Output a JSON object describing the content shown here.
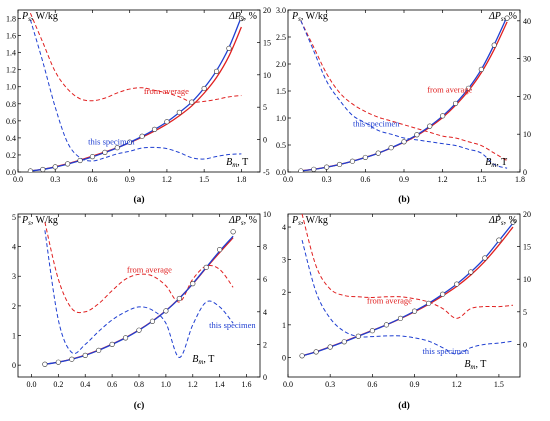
{
  "chart_data": [
    {
      "panel_label": "(a)",
      "type": "line",
      "y_left_label": "P",
      "y_left_sub": "s",
      "y_left_unit": ", W/kg",
      "y_right_label": "ΔP",
      "y_right_sub": "s",
      "y_right_unit": ", %",
      "x_label_main": "B",
      "x_label_sub": "m",
      "x_label_unit": ", T",
      "xlim": [
        0,
        1.95
      ],
      "ylim_left": [
        0,
        1.9
      ],
      "ylim_right": [
        -5,
        20
      ],
      "x_ticks": [
        "0.0",
        "0.3",
        "0.6",
        "0.9",
        "1.2",
        "1.5",
        "1.8"
      ],
      "y_left_ticks": [
        "0.0",
        "0.2",
        "0.4",
        "0.6",
        "0.8",
        "1.0",
        "1.2",
        "1.4",
        "1.6",
        "1.8"
      ],
      "y_right_ticks": [
        "-5",
        "0",
        "5",
        "10",
        "15",
        "20"
      ],
      "annotation_red": "from average",
      "annotation_blue": "this specimen",
      "series": [
        {
          "role": "measured",
          "axis": "left",
          "style": "circles",
          "color": "#000000",
          "x": [
            0.1,
            0.2,
            0.3,
            0.4,
            0.5,
            0.6,
            0.7,
            0.8,
            0.9,
            1.0,
            1.1,
            1.2,
            1.3,
            1.4,
            1.5,
            1.6,
            1.7,
            1.8
          ],
          "y": [
            0.012,
            0.03,
            0.06,
            0.095,
            0.135,
            0.18,
            0.23,
            0.285,
            0.35,
            0.42,
            0.5,
            0.59,
            0.7,
            0.82,
            0.98,
            1.18,
            1.45,
            1.8
          ]
        },
        {
          "role": "model-specimen",
          "axis": "left",
          "style": "solid",
          "color": "#1f3fd1",
          "x": [
            0.1,
            0.2,
            0.3,
            0.4,
            0.5,
            0.6,
            0.7,
            0.8,
            0.9,
            1.0,
            1.1,
            1.2,
            1.3,
            1.4,
            1.5,
            1.6,
            1.7,
            1.8
          ],
          "y": [
            0.012,
            0.03,
            0.058,
            0.093,
            0.133,
            0.178,
            0.228,
            0.283,
            0.348,
            0.418,
            0.498,
            0.588,
            0.698,
            0.82,
            0.985,
            1.19,
            1.46,
            1.82
          ]
        },
        {
          "role": "model-average",
          "axis": "left",
          "style": "solid",
          "color": "#e02020",
          "x": [
            0.1,
            0.2,
            0.3,
            0.4,
            0.5,
            0.6,
            0.7,
            0.8,
            0.9,
            1.0,
            1.1,
            1.2,
            1.3,
            1.4,
            1.5,
            1.6,
            1.7,
            1.8
          ],
          "y": [
            0.013,
            0.032,
            0.062,
            0.098,
            0.14,
            0.186,
            0.234,
            0.286,
            0.344,
            0.408,
            0.48,
            0.562,
            0.66,
            0.775,
            0.925,
            1.11,
            1.36,
            1.7
          ]
        },
        {
          "role": "error-average",
          "axis": "right",
          "style": "dashed",
          "color": "#e02020",
          "x": [
            0.1,
            0.2,
            0.3,
            0.4,
            0.5,
            0.6,
            0.7,
            0.8,
            0.9,
            1.0,
            1.1,
            1.2,
            1.3,
            1.4,
            1.5,
            1.6,
            1.7,
            1.8
          ],
          "y": [
            19.5,
            15,
            10.5,
            7.8,
            6.3,
            6.0,
            6.4,
            7.2,
            7.8,
            8.0,
            7.6,
            7.2,
            6.6,
            5.8,
            5.9,
            6.2,
            6.6,
            6.8
          ]
        },
        {
          "role": "error-specimen",
          "axis": "right",
          "style": "dashed",
          "color": "#1f3fd1",
          "x": [
            0.1,
            0.2,
            0.3,
            0.4,
            0.5,
            0.6,
            0.7,
            0.8,
            0.9,
            1.0,
            1.1,
            1.2,
            1.3,
            1.4,
            1.5,
            1.6,
            1.7,
            1.8
          ],
          "y": [
            18.5,
            12,
            5,
            -0.5,
            -2.8,
            -3.3,
            -2.8,
            -2.2,
            -1.8,
            -1.3,
            -1.2,
            -1.4,
            -2.0,
            -2.8,
            -3.0,
            -2.6,
            -2.3,
            -2.2
          ]
        }
      ]
    },
    {
      "panel_label": "(b)",
      "type": "line",
      "y_left_label": "P",
      "y_left_sub": "s",
      "y_left_unit": ", W/kg",
      "y_right_label": "ΔP",
      "y_right_sub": "s",
      "y_right_unit": ", %",
      "x_label_main": "B",
      "x_label_sub": "m",
      "x_label_unit": ", T",
      "xlim": [
        0,
        1.8
      ],
      "ylim_left": [
        0,
        3.0
      ],
      "ylim_right": [
        0,
        42.86
      ],
      "x_ticks": [
        "0.0",
        "0.3",
        "0.6",
        "0.9",
        "1.2",
        "1.5",
        "1.8"
      ],
      "y_left_ticks": [
        "0.0",
        "0.5",
        "1.0",
        "1.5",
        "2.0",
        "2.5",
        "3.0"
      ],
      "y_right_ticks": [
        "0",
        "10",
        "20",
        "30",
        "40"
      ],
      "annotation_red": "from average",
      "annotation_blue": "this specimen",
      "series": [
        {
          "role": "measured",
          "axis": "left",
          "style": "circles",
          "color": "#000000",
          "x": [
            0.1,
            0.2,
            0.3,
            0.4,
            0.5,
            0.6,
            0.7,
            0.8,
            0.9,
            1.0,
            1.1,
            1.2,
            1.3,
            1.4,
            1.5,
            1.6,
            1.7
          ],
          "y": [
            0.02,
            0.05,
            0.09,
            0.14,
            0.2,
            0.27,
            0.35,
            0.45,
            0.56,
            0.69,
            0.85,
            1.04,
            1.27,
            1.55,
            1.9,
            2.35,
            2.85
          ]
        },
        {
          "role": "model-specimen",
          "axis": "left",
          "style": "solid",
          "color": "#1f3fd1",
          "x": [
            0.1,
            0.2,
            0.3,
            0.4,
            0.5,
            0.6,
            0.7,
            0.8,
            0.9,
            1.0,
            1.1,
            1.2,
            1.3,
            1.4,
            1.5,
            1.6,
            1.7
          ],
          "y": [
            0.02,
            0.048,
            0.088,
            0.138,
            0.198,
            0.268,
            0.348,
            0.448,
            0.558,
            0.688,
            0.848,
            1.038,
            1.268,
            1.548,
            1.9,
            2.36,
            2.88
          ]
        },
        {
          "role": "model-average",
          "axis": "left",
          "style": "solid",
          "color": "#e02020",
          "x": [
            0.1,
            0.2,
            0.3,
            0.4,
            0.5,
            0.6,
            0.7,
            0.8,
            0.9,
            1.0,
            1.1,
            1.2,
            1.3,
            1.4,
            1.5,
            1.6,
            1.7
          ],
          "y": [
            0.021,
            0.05,
            0.09,
            0.14,
            0.2,
            0.27,
            0.35,
            0.445,
            0.55,
            0.675,
            0.83,
            1.01,
            1.235,
            1.505,
            1.84,
            2.27,
            2.78
          ]
        },
        {
          "role": "error-average",
          "axis": "right",
          "style": "dashed",
          "color": "#e02020",
          "x": [
            0.1,
            0.2,
            0.3,
            0.4,
            0.5,
            0.6,
            0.7,
            0.8,
            0.9,
            1.0,
            1.1,
            1.2,
            1.3,
            1.4,
            1.5,
            1.6,
            1.7
          ],
          "y": [
            40,
            33,
            26,
            21,
            18,
            16,
            14.5,
            13.5,
            12.5,
            11.5,
            10.5,
            9.5,
            9,
            8,
            7,
            5,
            3
          ]
        },
        {
          "role": "error-specimen",
          "axis": "right",
          "style": "dashed",
          "color": "#1f3fd1",
          "x": [
            0.1,
            0.2,
            0.3,
            0.4,
            0.5,
            0.6,
            0.7,
            0.8,
            0.9,
            1.0,
            1.1,
            1.2,
            1.3,
            1.4,
            1.5,
            1.6,
            1.7
          ],
          "y": [
            40,
            32,
            24,
            19,
            15,
            13,
            11,
            10,
            9,
            8.5,
            8,
            7.5,
            7,
            6,
            5,
            2,
            1
          ]
        }
      ]
    },
    {
      "panel_label": "(c)",
      "type": "line",
      "y_left_label": "P",
      "y_left_sub": "s",
      "y_left_unit": ", W/kg",
      "y_right_label": "ΔP",
      "y_right_sub": "s",
      "y_right_unit": ", %",
      "x_label_main": "B",
      "x_label_sub": "m",
      "x_label_unit": ", T",
      "xlim": [
        -0.1,
        1.7
      ],
      "ylim_left": [
        -0.4,
        5.1
      ],
      "ylim_right": [
        0,
        10
      ],
      "x_ticks": [
        "0.0",
        "0.2",
        "0.4",
        "0.6",
        "0.8",
        "1.0",
        "1.2",
        "1.4",
        "1.6"
      ],
      "y_left_ticks": [
        "0",
        "1",
        "2",
        "3",
        "4",
        "5"
      ],
      "y_right_ticks": [
        "0",
        "2",
        "4",
        "6",
        "8",
        "10"
      ],
      "annotation_red": "from average",
      "annotation_blue": "this specimen",
      "series": [
        {
          "role": "measured",
          "axis": "left",
          "style": "circles",
          "color": "#000000",
          "x": [
            0.1,
            0.2,
            0.3,
            0.4,
            0.5,
            0.6,
            0.7,
            0.8,
            0.9,
            1.0,
            1.1,
            1.2,
            1.3,
            1.4,
            1.5
          ],
          "y": [
            0.03,
            0.1,
            0.2,
            0.33,
            0.5,
            0.7,
            0.92,
            1.18,
            1.48,
            1.83,
            2.25,
            2.75,
            3.3,
            3.9,
            4.5
          ]
        },
        {
          "role": "model-specimen",
          "axis": "left",
          "style": "solid",
          "color": "#1f3fd1",
          "x": [
            0.1,
            0.2,
            0.3,
            0.4,
            0.5,
            0.6,
            0.7,
            0.8,
            0.9,
            1.0,
            1.1,
            1.2,
            1.3,
            1.4,
            1.5
          ],
          "y": [
            0.03,
            0.1,
            0.2,
            0.33,
            0.5,
            0.7,
            0.92,
            1.18,
            1.48,
            1.83,
            2.25,
            2.75,
            3.3,
            3.85,
            4.35
          ]
        },
        {
          "role": "model-average",
          "axis": "left",
          "style": "solid",
          "color": "#e02020",
          "x": [
            0.1,
            0.2,
            0.3,
            0.4,
            0.5,
            0.6,
            0.7,
            0.8,
            0.9,
            1.0,
            1.1,
            1.2,
            1.3,
            1.4,
            1.5
          ],
          "y": [
            0.031,
            0.102,
            0.205,
            0.338,
            0.51,
            0.71,
            0.93,
            1.19,
            1.49,
            1.84,
            2.26,
            2.74,
            3.28,
            3.8,
            4.3
          ]
        },
        {
          "role": "error-average",
          "axis": "right",
          "style": "dashed",
          "color": "#e02020",
          "x": [
            0.1,
            0.2,
            0.3,
            0.4,
            0.5,
            0.6,
            0.7,
            0.8,
            0.9,
            1.0,
            1.1,
            1.2,
            1.3,
            1.4,
            1.5
          ],
          "y": [
            9.5,
            6,
            4.2,
            4,
            4.5,
            5.3,
            6,
            6.3,
            6.2,
            5.6,
            4.6,
            6,
            6.8,
            6.6,
            5.5
          ]
        },
        {
          "role": "error-specimen",
          "axis": "right",
          "style": "dashed",
          "color": "#1f3fd1",
          "x": [
            0.1,
            0.2,
            0.3,
            0.4,
            0.5,
            0.6,
            0.7,
            0.8,
            0.9,
            1.0,
            1.1,
            1.2,
            1.3,
            1.4,
            1.5
          ],
          "y": [
            9,
            3.5,
            1.5,
            2,
            2.8,
            3.5,
            4,
            4.3,
            4.1,
            3.3,
            1.2,
            3.2,
            4.6,
            4.3,
            3.3
          ]
        }
      ]
    },
    {
      "panel_label": "(d)",
      "type": "line",
      "y_left_label": "P",
      "y_left_sub": "s",
      "y_left_unit": ", W/kg",
      "y_right_label": "ΔP",
      "y_right_sub": "s",
      "y_right_unit": ", %",
      "x_label_main": "B",
      "x_label_sub": "m",
      "x_label_unit": ", T",
      "xlim": [
        0,
        1.65
      ],
      "ylim_left": [
        -0.6,
        4.4
      ],
      "ylim_right": [
        -5,
        20
      ],
      "x_ticks": [
        "0.0",
        "0.3",
        "0.6",
        "0.9",
        "1.2",
        "1.5"
      ],
      "y_left_ticks": [
        "0",
        "1",
        "2",
        "3",
        "4"
      ],
      "y_right_ticks": [
        "0",
        "5",
        "10",
        "15",
        "20"
      ],
      "annotation_red": "from average",
      "annotation_blue": "this specimen",
      "series": [
        {
          "role": "measured",
          "axis": "left",
          "style": "circles",
          "color": "#000000",
          "x": [
            0.1,
            0.2,
            0.3,
            0.4,
            0.5,
            0.6,
            0.7,
            0.8,
            0.9,
            1.0,
            1.1,
            1.2,
            1.3,
            1.4,
            1.5,
            1.6
          ],
          "y": [
            0.05,
            0.17,
            0.32,
            0.48,
            0.65,
            0.82,
            1.0,
            1.2,
            1.42,
            1.66,
            1.94,
            2.25,
            2.62,
            3.05,
            3.6,
            4.15
          ]
        },
        {
          "role": "model-specimen",
          "axis": "left",
          "style": "solid",
          "color": "#1f3fd1",
          "x": [
            0.1,
            0.2,
            0.3,
            0.4,
            0.5,
            0.6,
            0.7,
            0.8,
            0.9,
            1.0,
            1.1,
            1.2,
            1.3,
            1.4,
            1.5,
            1.6
          ],
          "y": [
            0.05,
            0.17,
            0.32,
            0.48,
            0.65,
            0.82,
            1.0,
            1.2,
            1.42,
            1.66,
            1.94,
            2.25,
            2.62,
            3.05,
            3.58,
            4.12
          ]
        },
        {
          "role": "model-average",
          "axis": "left",
          "style": "solid",
          "color": "#e02020",
          "x": [
            0.1,
            0.2,
            0.3,
            0.4,
            0.5,
            0.6,
            0.7,
            0.8,
            0.9,
            1.0,
            1.1,
            1.2,
            1.3,
            1.4,
            1.5,
            1.6
          ],
          "y": [
            0.052,
            0.175,
            0.328,
            0.49,
            0.66,
            0.83,
            1.0,
            1.19,
            1.4,
            1.63,
            1.89,
            2.18,
            2.53,
            2.95,
            3.45,
            4.0
          ]
        },
        {
          "role": "error-average",
          "axis": "right",
          "style": "dashed",
          "color": "#e02020",
          "x": [
            0.1,
            0.2,
            0.3,
            0.4,
            0.5,
            0.6,
            0.7,
            0.8,
            0.9,
            1.0,
            1.1,
            1.2,
            1.3,
            1.4,
            1.5,
            1.6
          ],
          "y": [
            20,
            12,
            8.5,
            7.5,
            7.3,
            7.2,
            7.3,
            7.3,
            7.0,
            6.5,
            5.5,
            4.0,
            5.5,
            5.8,
            5.8,
            6.0
          ]
        },
        {
          "role": "error-specimen",
          "axis": "right",
          "style": "dashed",
          "color": "#1f3fd1",
          "x": [
            0.1,
            0.2,
            0.3,
            0.4,
            0.5,
            0.6,
            0.7,
            0.8,
            0.9,
            1.0,
            1.1,
            1.2,
            1.3,
            1.4,
            1.5,
            1.6
          ],
          "y": [
            16,
            8,
            4,
            2,
            1.2,
            1.2,
            1.3,
            1.3,
            1.0,
            0.5,
            -0.5,
            -1.5,
            -0.5,
            0.0,
            0.2,
            0.5
          ]
        }
      ]
    }
  ]
}
